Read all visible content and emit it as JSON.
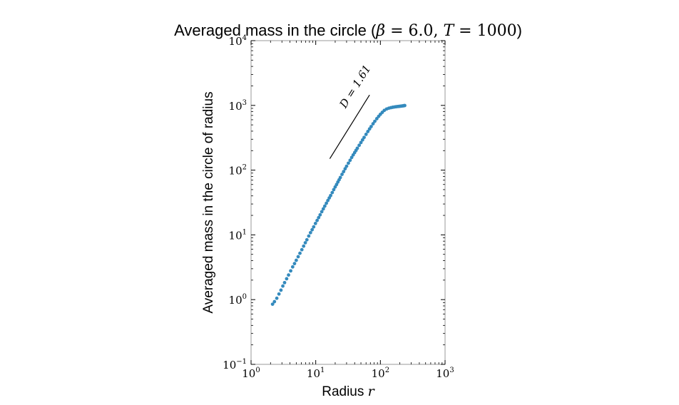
{
  "chart_data": {
    "type": "scatter",
    "title": "Averaged mass in the circle (β = 6.0, T = 1000)",
    "xlabel": "Radius r",
    "ylabel": "Averaged mass in the circle of radius",
    "xscale": "log",
    "yscale": "log",
    "xlim": [
      1,
      1000
    ],
    "ylim": [
      0.1,
      10000
    ],
    "grid": false,
    "legend": "none",
    "colors": {
      "points": "#348abd",
      "axes": "#999999",
      "line": "#000000"
    },
    "xticks": [
      {
        "value": 1,
        "base": "10",
        "exp": "0"
      },
      {
        "value": 10,
        "base": "10",
        "exp": "1"
      },
      {
        "value": 100,
        "base": "10",
        "exp": "2"
      },
      {
        "value": 1000,
        "base": "10",
        "exp": "3"
      }
    ],
    "yticks": [
      {
        "value": 0.1,
        "base": "10",
        "exp": "−1"
      },
      {
        "value": 1,
        "base": "10",
        "exp": "0"
      },
      {
        "value": 10,
        "base": "10",
        "exp": "1"
      },
      {
        "value": 100,
        "base": "10",
        "exp": "2"
      },
      {
        "value": 1000,
        "base": "10",
        "exp": "3"
      },
      {
        "value": 10000,
        "base": "10",
        "exp": "4"
      }
    ],
    "reference_line": {
      "label": "D = 1.61",
      "x": [
        16.5,
        68
      ],
      "y": [
        150,
        1450
      ]
    },
    "series": [
      {
        "x": [
          2.15,
          2.3,
          2.5,
          2.7,
          2.9,
          3.1,
          3.3,
          3.55,
          3.8,
          4.1,
          4.4,
          4.7,
          5.0,
          5.35,
          5.7,
          6.1,
          6.5,
          6.9,
          7.3,
          7.8,
          8.3,
          8.8,
          9.3,
          9.9,
          10.5,
          11.1,
          11.7,
          12.4,
          13.1,
          13.8,
          14.6,
          15.4,
          16.2,
          17.0,
          18.0,
          19.0,
          20.0,
          21.0,
          22.0,
          23.0,
          24.0,
          25.5,
          27.0,
          28.5,
          30.0,
          32.0,
          34.0,
          36.0,
          38.0,
          40.0,
          42.0,
          44.0,
          47.0,
          50.0,
          53.0,
          56.0,
          60.0,
          64.0,
          68.0,
          72.0,
          77.0,
          82.0,
          88.0,
          94.0,
          100.0,
          107.0,
          115.0,
          125.0,
          135.0,
          145.0,
          155.0,
          165.0,
          175.0,
          185.0,
          195.0,
          205.0,
          215.0,
          225.0,
          232.0,
          238.0
        ],
        "y": [
          0.85,
          0.93,
          1.05,
          1.22,
          1.4,
          1.62,
          1.83,
          2.1,
          2.4,
          2.78,
          3.2,
          3.6,
          4.05,
          4.6,
          5.2,
          5.9,
          6.7,
          7.55,
          8.4,
          9.6,
          10.8,
          12.0,
          13.3,
          15.0,
          16.7,
          18.5,
          20.4,
          22.8,
          25.2,
          27.8,
          30.8,
          34.0,
          37.2,
          40.5,
          45.0,
          50.0,
          55.0,
          60.0,
          65.5,
          71.0,
          77.0,
          86.0,
          95.0,
          105.0,
          115.0,
          128.0,
          142.0,
          157.0,
          172.0,
          187.0,
          202.0,
          218.0,
          242.0,
          267.0,
          293.0,
          320.0,
          357.0,
          395.0,
          433.0,
          471.0,
          520.0,
          568.0,
          623.0,
          677.0,
          728.0,
          781.0,
          838.0,
          880.0,
          905.0,
          922.0,
          935.0,
          945.0,
          953.0,
          960.0,
          966.0,
          972.0,
          978.0,
          984.0,
          990.0,
          995.0
        ]
      }
    ]
  }
}
